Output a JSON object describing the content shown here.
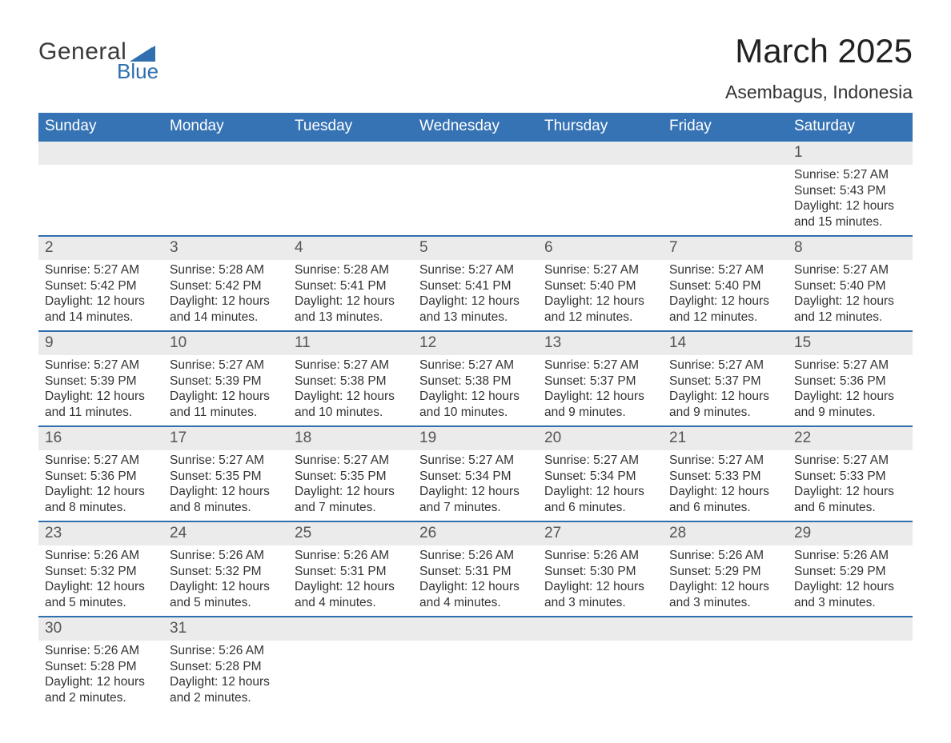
{
  "brand": {
    "word1": "General",
    "word2": "Blue",
    "icon_color": "#2f6fb0",
    "text_color": "#3a3a3a"
  },
  "header": {
    "month_year": "March 2025",
    "location": "Asembagus, Indonesia"
  },
  "theme": {
    "header_bg": "#3673b4",
    "header_fg": "#ffffff",
    "row_divider": "#2f6fb0",
    "daynum_bg": "#ebebeb",
    "body_bg": "#ffffff",
    "text_color": "#333333"
  },
  "weekdays": [
    "Sunday",
    "Monday",
    "Tuesday",
    "Wednesday",
    "Thursday",
    "Friday",
    "Saturday"
  ],
  "weeks": [
    [
      null,
      null,
      null,
      null,
      null,
      null,
      {
        "n": "1",
        "sunrise": "5:27 AM",
        "sunset": "5:43 PM",
        "dl1": "Daylight: 12 hours",
        "dl2": "and 15 minutes."
      }
    ],
    [
      {
        "n": "2",
        "sunrise": "5:27 AM",
        "sunset": "5:42 PM",
        "dl1": "Daylight: 12 hours",
        "dl2": "and 14 minutes."
      },
      {
        "n": "3",
        "sunrise": "5:28 AM",
        "sunset": "5:42 PM",
        "dl1": "Daylight: 12 hours",
        "dl2": "and 14 minutes."
      },
      {
        "n": "4",
        "sunrise": "5:28 AM",
        "sunset": "5:41 PM",
        "dl1": "Daylight: 12 hours",
        "dl2": "and 13 minutes."
      },
      {
        "n": "5",
        "sunrise": "5:27 AM",
        "sunset": "5:41 PM",
        "dl1": "Daylight: 12 hours",
        "dl2": "and 13 minutes."
      },
      {
        "n": "6",
        "sunrise": "5:27 AM",
        "sunset": "5:40 PM",
        "dl1": "Daylight: 12 hours",
        "dl2": "and 12 minutes."
      },
      {
        "n": "7",
        "sunrise": "5:27 AM",
        "sunset": "5:40 PM",
        "dl1": "Daylight: 12 hours",
        "dl2": "and 12 minutes."
      },
      {
        "n": "8",
        "sunrise": "5:27 AM",
        "sunset": "5:40 PM",
        "dl1": "Daylight: 12 hours",
        "dl2": "and 12 minutes."
      }
    ],
    [
      {
        "n": "9",
        "sunrise": "5:27 AM",
        "sunset": "5:39 PM",
        "dl1": "Daylight: 12 hours",
        "dl2": "and 11 minutes."
      },
      {
        "n": "10",
        "sunrise": "5:27 AM",
        "sunset": "5:39 PM",
        "dl1": "Daylight: 12 hours",
        "dl2": "and 11 minutes."
      },
      {
        "n": "11",
        "sunrise": "5:27 AM",
        "sunset": "5:38 PM",
        "dl1": "Daylight: 12 hours",
        "dl2": "and 10 minutes."
      },
      {
        "n": "12",
        "sunrise": "5:27 AM",
        "sunset": "5:38 PM",
        "dl1": "Daylight: 12 hours",
        "dl2": "and 10 minutes."
      },
      {
        "n": "13",
        "sunrise": "5:27 AM",
        "sunset": "5:37 PM",
        "dl1": "Daylight: 12 hours",
        "dl2": "and 9 minutes."
      },
      {
        "n": "14",
        "sunrise": "5:27 AM",
        "sunset": "5:37 PM",
        "dl1": "Daylight: 12 hours",
        "dl2": "and 9 minutes."
      },
      {
        "n": "15",
        "sunrise": "5:27 AM",
        "sunset": "5:36 PM",
        "dl1": "Daylight: 12 hours",
        "dl2": "and 9 minutes."
      }
    ],
    [
      {
        "n": "16",
        "sunrise": "5:27 AM",
        "sunset": "5:36 PM",
        "dl1": "Daylight: 12 hours",
        "dl2": "and 8 minutes."
      },
      {
        "n": "17",
        "sunrise": "5:27 AM",
        "sunset": "5:35 PM",
        "dl1": "Daylight: 12 hours",
        "dl2": "and 8 minutes."
      },
      {
        "n": "18",
        "sunrise": "5:27 AM",
        "sunset": "5:35 PM",
        "dl1": "Daylight: 12 hours",
        "dl2": "and 7 minutes."
      },
      {
        "n": "19",
        "sunrise": "5:27 AM",
        "sunset": "5:34 PM",
        "dl1": "Daylight: 12 hours",
        "dl2": "and 7 minutes."
      },
      {
        "n": "20",
        "sunrise": "5:27 AM",
        "sunset": "5:34 PM",
        "dl1": "Daylight: 12 hours",
        "dl2": "and 6 minutes."
      },
      {
        "n": "21",
        "sunrise": "5:27 AM",
        "sunset": "5:33 PM",
        "dl1": "Daylight: 12 hours",
        "dl2": "and 6 minutes."
      },
      {
        "n": "22",
        "sunrise": "5:27 AM",
        "sunset": "5:33 PM",
        "dl1": "Daylight: 12 hours",
        "dl2": "and 6 minutes."
      }
    ],
    [
      {
        "n": "23",
        "sunrise": "5:26 AM",
        "sunset": "5:32 PM",
        "dl1": "Daylight: 12 hours",
        "dl2": "and 5 minutes."
      },
      {
        "n": "24",
        "sunrise": "5:26 AM",
        "sunset": "5:32 PM",
        "dl1": "Daylight: 12 hours",
        "dl2": "and 5 minutes."
      },
      {
        "n": "25",
        "sunrise": "5:26 AM",
        "sunset": "5:31 PM",
        "dl1": "Daylight: 12 hours",
        "dl2": "and 4 minutes."
      },
      {
        "n": "26",
        "sunrise": "5:26 AM",
        "sunset": "5:31 PM",
        "dl1": "Daylight: 12 hours",
        "dl2": "and 4 minutes."
      },
      {
        "n": "27",
        "sunrise": "5:26 AM",
        "sunset": "5:30 PM",
        "dl1": "Daylight: 12 hours",
        "dl2": "and 3 minutes."
      },
      {
        "n": "28",
        "sunrise": "5:26 AM",
        "sunset": "5:29 PM",
        "dl1": "Daylight: 12 hours",
        "dl2": "and 3 minutes."
      },
      {
        "n": "29",
        "sunrise": "5:26 AM",
        "sunset": "5:29 PM",
        "dl1": "Daylight: 12 hours",
        "dl2": "and 3 minutes."
      }
    ],
    [
      {
        "n": "30",
        "sunrise": "5:26 AM",
        "sunset": "5:28 PM",
        "dl1": "Daylight: 12 hours",
        "dl2": "and 2 minutes."
      },
      {
        "n": "31",
        "sunrise": "5:26 AM",
        "sunset": "5:28 PM",
        "dl1": "Daylight: 12 hours",
        "dl2": "and 2 minutes."
      },
      null,
      null,
      null,
      null,
      null
    ]
  ],
  "labels": {
    "sunrise_prefix": "Sunrise: ",
    "sunset_prefix": "Sunset: "
  }
}
